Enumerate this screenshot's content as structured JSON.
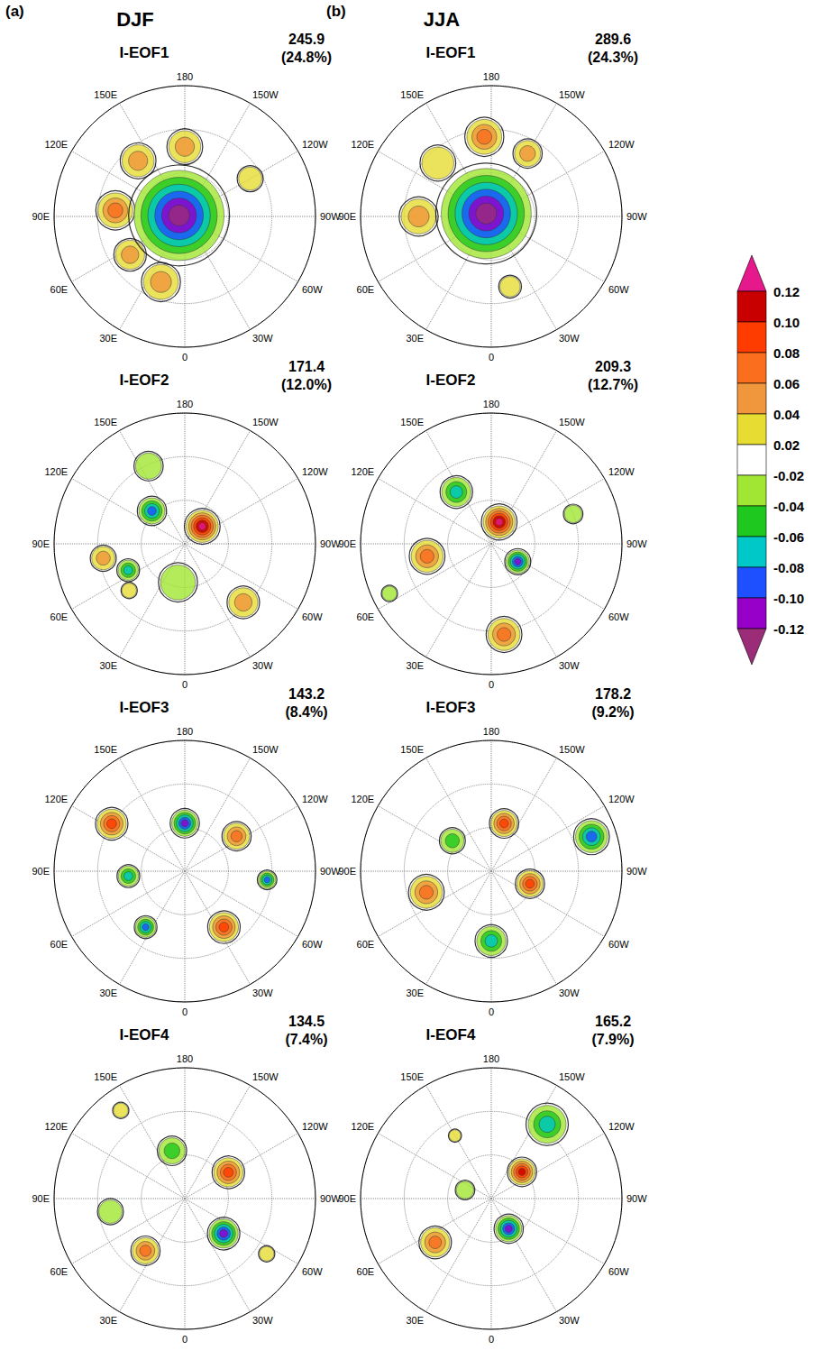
{
  "chart_data": {
    "type": "map",
    "xlim": [
      0,
      360
    ],
    "xticks": [
      0,
      {
        "value": 30,
        "label": "30E"
      },
      {
        "value": 60,
        "label": "60E"
      },
      {
        "value": 90,
        "label": "90E"
      },
      {
        "value": 120,
        "label": "120E"
      },
      {
        "value": 150,
        "label": "150E"
      },
      180,
      {
        "value": 210,
        "label": "150W"
      },
      {
        "value": 240,
        "label": "120W"
      },
      {
        "value": 270,
        "label": "90W"
      },
      {
        "value": 300,
        "label": "60W"
      },
      {
        "value": 330,
        "label": "30W"
      }
    ],
    "ylim": [
      -90,
      0
    ],
    "yticks": [
      -90,
      -60,
      -30,
      0
    ],
    "grid": true,
    "tick_labels": "x",
    "colorbar": {
      "levels": [
        -0.12,
        {
          "value": -0.1,
          "label": "-0.10"
        },
        -0.08,
        -0.06,
        -0.04,
        -0.02,
        0.02,
        0.04,
        0.06,
        0.08,
        {
          "value": 0.1,
          "label": "0.10"
        },
        0.12
      ],
      "colors": [
        "#9b2c78",
        "#9600c8",
        "#1e50ff",
        "#00c8c8",
        "#1ec81e",
        "#a0e632",
        "#ffffff",
        "#e6dc32",
        "#f0963c",
        "#fa6e1e",
        "#ff3c00",
        "#c80000",
        "#e6198c"
      ]
    },
    "columns": [
      {
        "label": "(a)",
        "title": "DJF",
        "panels": [
          {
            "title": "I-EOF1",
            "eigenvalue": 245.9,
            "variance": "(24.8%)",
            "centers": [
              {
                "lon": 95,
                "lat": -42,
                "value": 0.07,
                "size": 12
              },
              {
                "lon": 140,
                "lat": -40,
                "value": 0.06,
                "size": 11
              },
              {
                "lon": 180,
                "lat": -42,
                "value": 0.06,
                "size": 11
              },
              {
                "lon": 20,
                "lat": -42,
                "value": 0.06,
                "size": 12
              },
              {
                "lon": 55,
                "lat": -44,
                "value": 0.05,
                "size": 10
              },
              {
                "lon": 240,
                "lat": -38,
                "value": 0.04,
                "size": 8
              },
              {
                "lon": 100,
                "lat": -86,
                "value": -0.13,
                "size": 31
              }
            ]
          },
          {
            "title": "I-EOF2",
            "eigenvalue": 171.4,
            "variance": "(12.0%)",
            "centers": [
              {
                "lon": 10,
                "lat": -63,
                "value": -0.04,
                "size": 12
              },
              {
                "lon": 155,
                "lat": -31,
                "value": -0.04,
                "size": 9
              },
              {
                "lon": 80,
                "lat": -33,
                "value": 0.05,
                "size": 8
              },
              {
                "lon": 65,
                "lat": -47,
                "value": -0.07,
                "size": 7
              },
              {
                "lon": 50,
                "lat": -40,
                "value": 0.04,
                "size": 5
              },
              {
                "lon": 315,
                "lat": -33,
                "value": 0.06,
                "size": 10
              },
              {
                "lon": 135,
                "lat": -58,
                "value": -0.1,
                "size": 9
              },
              {
                "lon": 225,
                "lat": -73,
                "value": 0.125,
                "size": 11
              }
            ]
          },
          {
            "title": "I-EOF3",
            "eigenvalue": 143.2,
            "variance": "(8.4%)",
            "centers": [
              {
                "lon": 123,
                "lat": -30,
                "value": 0.09,
                "size": 10
              },
              {
                "lon": 180,
                "lat": -57,
                "value": -0.11,
                "size": 9
              },
              {
                "lon": 236,
                "lat": -47,
                "value": 0.07,
                "size": 9
              },
              {
                "lon": 276,
                "lat": -33,
                "value": -0.09,
                "size": 6
              },
              {
                "lon": 325,
                "lat": -43,
                "value": 0.09,
                "size": 10
              },
              {
                "lon": 35,
                "lat": -43,
                "value": -0.09,
                "size": 7
              },
              {
                "lon": 85,
                "lat": -51,
                "value": -0.07,
                "size": 7
              }
            ]
          },
          {
            "title": "I-EOF4",
            "eigenvalue": 134.5,
            "variance": "(7.4%)",
            "centers": [
              {
                "lon": 80,
                "lat": -38,
                "value": -0.04,
                "size": 8
              },
              {
                "lon": 144,
                "lat": -15,
                "value": 0.03,
                "size": 5
              },
              {
                "lon": 304,
                "lat": -22,
                "value": 0.03,
                "size": 5
              },
              {
                "lon": 37,
                "lat": -45,
                "value": 0.07,
                "size": 9
              },
              {
                "lon": 165,
                "lat": -56,
                "value": -0.06,
                "size": 9
              },
              {
                "lon": 239,
                "lat": -55,
                "value": 0.1,
                "size": 10
              },
              {
                "lon": 312,
                "lat": -54,
                "value": -0.11,
                "size": 10
              }
            ]
          }
        ]
      },
      {
        "label": "(b)",
        "title": "JJA",
        "panels": [
          {
            "title": "I-EOF1",
            "eigenvalue": 289.6,
            "variance": "(24.3%)",
            "centers": [
              {
                "lon": 90,
                "lat": -40,
                "value": 0.05,
                "size": 12
              },
              {
                "lon": 135,
                "lat": -38,
                "value": 0.04,
                "size": 11
              },
              {
                "lon": 175,
                "lat": -35,
                "value": 0.07,
                "size": 12
              },
              {
                "lon": 210,
                "lat": -40,
                "value": 0.05,
                "size": 9
              },
              {
                "lon": 345,
                "lat": -40,
                "value": 0.04,
                "size": 7
              },
              {
                "lon": 120,
                "lat": -86,
                "value": -0.13,
                "size": 31
              }
            ]
          },
          {
            "title": "I-EOF2",
            "eigenvalue": 209.3,
            "variance": "(12.7%)",
            "centers": [
              {
                "lon": 64,
                "lat": -12,
                "value": -0.04,
                "size": 5
              },
              {
                "lon": 250,
                "lat": -30,
                "value": -0.03,
                "size": 6
              },
              {
                "lon": 146,
                "lat": -47,
                "value": -0.08,
                "size": 10
              },
              {
                "lon": 79,
                "lat": -45,
                "value": 0.07,
                "size": 11
              },
              {
                "lon": 352,
                "lat": -27,
                "value": 0.07,
                "size": 11
              },
              {
                "lon": 304,
                "lat": -68,
                "value": -0.11,
                "size": 8
              },
              {
                "lon": 200,
                "lat": -74,
                "value": 0.125,
                "size": 11
              }
            ]
          },
          {
            "title": "I-EOF3",
            "eigenvalue": 178.2,
            "variance": "(9.2%)",
            "centers": [
              {
                "lon": 128,
                "lat": -56,
                "value": -0.05,
                "size": 8
              },
              {
                "lon": 251,
                "lat": -17,
                "value": -0.09,
                "size": 11
              },
              {
                "lon": 72,
                "lat": -43,
                "value": 0.08,
                "size": 11
              },
              {
                "lon": 0,
                "lat": -42,
                "value": -0.07,
                "size": 10
              },
              {
                "lon": 195,
                "lat": -56,
                "value": 0.09,
                "size": 9
              },
              {
                "lon": 288,
                "lat": -62,
                "value": 0.09,
                "size": 9
              }
            ]
          },
          {
            "title": "I-EOF4",
            "eigenvalue": 165.2,
            "variance": "(7.9%)",
            "centers": [
              {
                "lon": 217,
                "lat": -26,
                "value": -0.07,
                "size": 13
              },
              {
                "lon": 150,
                "lat": -40,
                "value": 0.03,
                "size": 4
              },
              {
                "lon": 52,
                "lat": -41,
                "value": 0.07,
                "size": 10
              },
              {
                "lon": 108,
                "lat": -71,
                "value": -0.04,
                "size": 6
              },
              {
                "lon": 229,
                "lat": -62,
                "value": 0.11,
                "size": 9
              },
              {
                "lon": 330,
                "lat": -66,
                "value": -0.12,
                "size": 9
              }
            ]
          }
        ]
      }
    ]
  }
}
